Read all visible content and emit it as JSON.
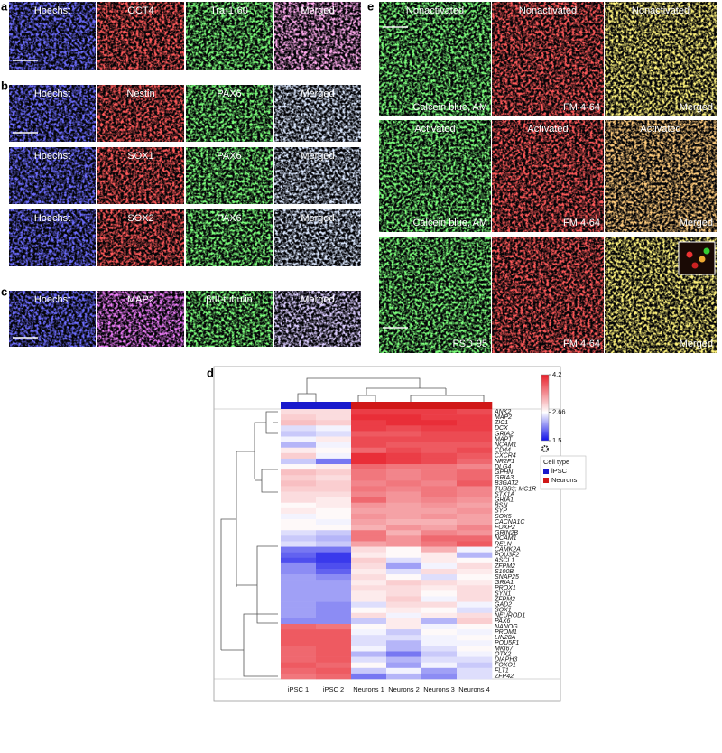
{
  "panels": {
    "a": {
      "letter": "a",
      "rows": [
        [
          "Hoechst",
          "OCT4",
          "Tra-1-60",
          "Merged"
        ]
      ]
    },
    "b": {
      "letter": "b",
      "rows": [
        [
          "Hoechst",
          "Nestin",
          "PAX6",
          "Merged"
        ],
        [
          "Hoechst",
          "SOX1",
          "PAX6",
          "Merged"
        ],
        [
          "Hoechst",
          "SOX2",
          "PAX6",
          "Merged"
        ]
      ]
    },
    "c": {
      "letter": "c",
      "rows": [
        [
          "Hoechst",
          "MAP2",
          "βIII-tubulin",
          "Merged"
        ]
      ]
    },
    "e": {
      "letter": "e",
      "rows": [
        [
          {
            "top": "Nonactivated",
            "bottom": "Calcein blue, AM"
          },
          {
            "top": "Nonactivated",
            "bottom": "FM 4-64"
          },
          {
            "top": "Nonactivated",
            "bottom": "Merged"
          }
        ],
        [
          {
            "top": "Activated",
            "bottom": "Calcein blue, AM"
          },
          {
            "top": "Activated",
            "bottom": "FM 4-64"
          },
          {
            "top": "Activated",
            "bottom": "Merged"
          }
        ],
        [
          {
            "bottom": "PSD-95"
          },
          {
            "bottom": "FM 4-64"
          },
          {
            "bottom": "Merged"
          }
        ]
      ]
    }
  },
  "chart_data": {
    "type": "heatmap",
    "panel_label": "d",
    "columns": [
      "iPSC 1",
      "iPSC 2",
      "Neurons 1",
      "Neurons 2",
      "Neurons 3",
      "Neurons 4"
    ],
    "column_groups": [
      0,
      0,
      1,
      1,
      1,
      1
    ],
    "group_title": "Cell type",
    "groups": [
      {
        "name": "iPSC",
        "color": "#1a1acc"
      },
      {
        "name": "Neurons",
        "color": "#d01818"
      }
    ],
    "zlim": [
      1.5,
      4.2
    ],
    "zticks": [
      1.5,
      2.66,
      4.2
    ],
    "colors": [
      "#1010e8",
      "#ffffff",
      "#e8202a"
    ],
    "rows": [
      "ANK2",
      "MAP2",
      "ZIC1",
      "DCX",
      "GRIA2",
      "MAPT",
      "NCAM1",
      "CD44",
      "CXCR4",
      "NR2F1",
      "DLG4",
      "GPHN",
      "GRIA3",
      "B3GAT2",
      "TUBB3; MC1R",
      "STX1A",
      "GRIA1",
      "BSN",
      "SYP",
      "SOX5",
      "CACNA1C",
      "FOXP2",
      "GRIN2B",
      "NCAM1",
      "RELN",
      "CAMK2A",
      "POU3F2",
      "ASCL1",
      "ZFPM2",
      "S100B",
      "SNAP25",
      "GRIA1",
      "PROX1",
      "SYN1",
      "ZFPM2",
      "GAD2",
      "SOX1",
      "NEUROD1",
      "PAX6",
      "NANOG",
      "PROM1",
      "LIN28A",
      "POU5F1",
      "MKI67",
      "OTX2",
      "DIAPH3",
      "FOXO1",
      "FLT1",
      "ZFP42"
    ],
    "values": [
      [
        2.9,
        2.9,
        4.0,
        4.0,
        4.0,
        3.9
      ],
      [
        3.0,
        2.9,
        4.1,
        4.1,
        4.0,
        4.0
      ],
      [
        3.1,
        3.0,
        4.0,
        4.1,
        4.1,
        4.0
      ],
      [
        2.5,
        2.6,
        4.0,
        3.9,
        4.0,
        4.0
      ],
      [
        2.4,
        2.5,
        3.8,
        3.8,
        3.9,
        3.9
      ],
      [
        2.6,
        2.8,
        3.9,
        3.9,
        3.9,
        3.9
      ],
      [
        2.3,
        2.6,
        3.9,
        3.8,
        3.8,
        3.8
      ],
      [
        2.8,
        2.7,
        3.7,
        3.9,
        3.8,
        3.9
      ],
      [
        3.0,
        2.6,
        4.1,
        4.0,
        3.9,
        3.8
      ],
      [
        2.4,
        2.0,
        4.1,
        4.0,
        3.9,
        3.7
      ],
      [
        2.7,
        2.8,
        3.7,
        3.6,
        3.6,
        3.5
      ],
      [
        3.1,
        3.0,
        3.6,
        3.5,
        3.6,
        3.7
      ],
      [
        3.0,
        2.9,
        3.6,
        3.5,
        3.6,
        3.7
      ],
      [
        3.1,
        3.0,
        3.5,
        3.6,
        3.5,
        3.8
      ],
      [
        3.0,
        3.0,
        3.6,
        3.5,
        3.6,
        3.5
      ],
      [
        2.9,
        2.9,
        3.5,
        3.4,
        3.6,
        3.5
      ],
      [
        2.9,
        2.8,
        3.7,
        3.4,
        3.5,
        3.4
      ],
      [
        2.7,
        2.8,
        3.4,
        3.3,
        3.4,
        3.3
      ],
      [
        2.8,
        2.7,
        3.3,
        3.3,
        3.3,
        3.4
      ],
      [
        2.6,
        2.7,
        3.4,
        3.3,
        3.4,
        3.3
      ],
      [
        2.7,
        2.6,
        3.3,
        3.2,
        3.2,
        3.3
      ],
      [
        2.7,
        2.7,
        3.2,
        3.4,
        3.3,
        3.5
      ],
      [
        2.5,
        2.4,
        3.6,
        3.2,
        3.5,
        3.4
      ],
      [
        2.4,
        2.3,
        3.6,
        3.4,
        3.7,
        3.7
      ],
      [
        2.5,
        2.4,
        3.3,
        3.4,
        3.6,
        3.8
      ],
      [
        2.0,
        2.0,
        2.9,
        2.7,
        3.2,
        2.6
      ],
      [
        1.9,
        1.7,
        2.8,
        2.7,
        2.8,
        2.3
      ],
      [
        1.8,
        1.7,
        3.0,
        2.5,
        2.8,
        2.7
      ],
      [
        2.1,
        1.8,
        2.9,
        2.2,
        2.6,
        2.9
      ],
      [
        2.1,
        1.9,
        2.8,
        2.5,
        2.9,
        2.8
      ],
      [
        2.2,
        2.1,
        2.9,
        2.7,
        2.5,
        2.7
      ],
      [
        2.2,
        2.2,
        2.8,
        3.0,
        2.9,
        2.8
      ],
      [
        2.2,
        2.2,
        2.9,
        2.9,
        2.8,
        2.9
      ],
      [
        2.2,
        2.2,
        2.8,
        2.9,
        2.7,
        2.9
      ],
      [
        2.2,
        2.2,
        2.8,
        3.0,
        2.6,
        2.9
      ],
      [
        2.2,
        2.1,
        2.5,
        2.9,
        2.9,
        2.6
      ],
      [
        2.2,
        2.1,
        2.7,
        2.8,
        2.7,
        2.5
      ],
      [
        2.2,
        2.1,
        2.9,
        2.6,
        2.8,
        2.9
      ],
      [
        2.1,
        2.1,
        2.4,
        2.8,
        2.3,
        3.0
      ],
      [
        3.7,
        3.6,
        2.7,
        2.8,
        2.6,
        2.7
      ],
      [
        3.8,
        3.8,
        2.6,
        2.4,
        2.7,
        2.6
      ],
      [
        3.8,
        3.8,
        2.5,
        2.5,
        2.6,
        2.7
      ],
      [
        3.8,
        3.8,
        2.5,
        2.3,
        2.6,
        2.6
      ],
      [
        3.7,
        3.8,
        2.6,
        2.3,
        2.5,
        2.7
      ],
      [
        3.7,
        3.8,
        2.3,
        2.0,
        2.4,
        2.6
      ],
      [
        3.7,
        3.8,
        2.5,
        2.3,
        2.5,
        2.5
      ],
      [
        3.8,
        3.7,
        2.7,
        2.2,
        2.6,
        2.4
      ],
      [
        3.7,
        3.8,
        2.4,
        2.6,
        2.2,
        2.5
      ],
      [
        3.6,
        3.7,
        2.0,
        2.3,
        2.1,
        2.5
      ]
    ]
  }
}
